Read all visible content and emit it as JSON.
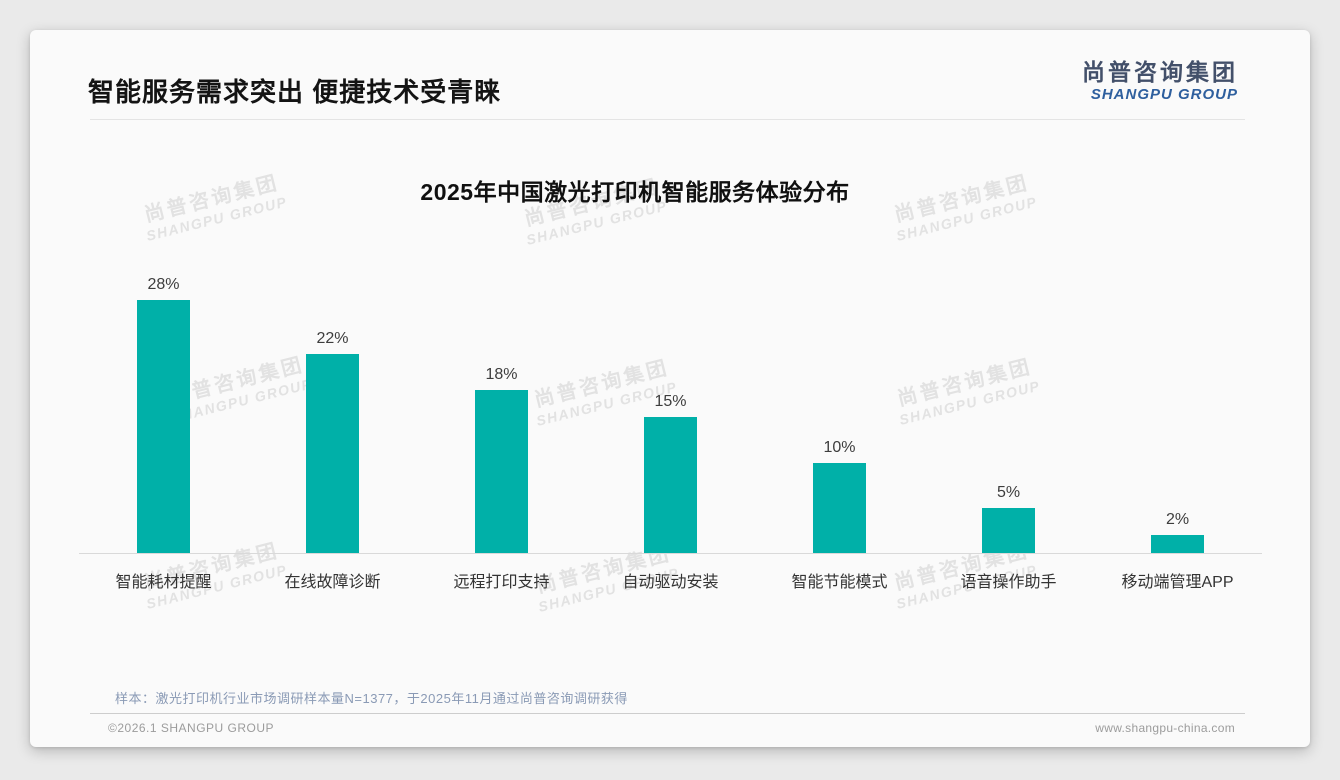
{
  "header": {
    "title": "智能服务需求突出 便捷技术受青睐"
  },
  "logo": {
    "name_cn": "尚普咨询集团",
    "name_en": "SHANGPU GROUP"
  },
  "watermark": {
    "line1": "尚普咨询集团",
    "line2": "SHANGPU GROUP"
  },
  "chart_data": {
    "type": "bar",
    "title": "2025年中国激光打印机智能服务体验分布",
    "categories": [
      "智能耗材提醒",
      "在线故障诊断",
      "远程打印支持",
      "自动驱动安装",
      "智能节能模式",
      "语音操作助手",
      "移动端管理APP"
    ],
    "values": [
      28,
      22,
      18,
      15,
      10,
      5,
      2
    ],
    "value_labels": [
      "28%",
      "22%",
      "18%",
      "15%",
      "10%",
      "5%",
      "2%"
    ],
    "unit": "%",
    "ylim": [
      0,
      30
    ],
    "xlabel": "",
    "ylabel": "",
    "grid": false,
    "legend_position": "none",
    "bar_color": "#00b0a8"
  },
  "footnote": "样本：激光打印机行业市场调研样本量N=1377，于2025年11月通过尚普咨询调研获得",
  "footer": {
    "left": "©2026.1 SHANGPU GROUP",
    "right": "www.shangpu-china.com"
  }
}
